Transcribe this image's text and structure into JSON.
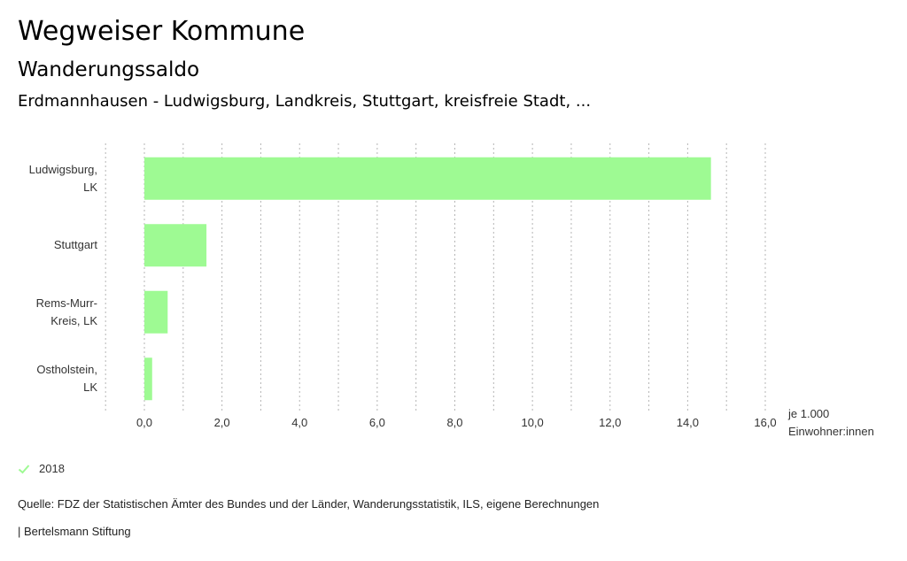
{
  "header": {
    "title": "Wegweiser Kommune",
    "subtitle": "Wanderungssaldo",
    "context": "Erdmannhausen - Ludwigsburg, Landkreis, Stuttgart, kreisfreie Stadt, ..."
  },
  "chart_data": {
    "type": "bar",
    "orientation": "horizontal",
    "categories": [
      [
        "Ludwigsburg,",
        "LK"
      ],
      [
        "Stuttgart"
      ],
      [
        "Rems-Murr-",
        "Kreis, LK"
      ],
      [
        "Ostholstein,",
        "LK"
      ]
    ],
    "series": [
      {
        "name": "2018",
        "values": [
          14.6,
          1.6,
          0.6,
          0.2
        ],
        "color": "#9efa93"
      }
    ],
    "xlim": [
      0,
      16
    ],
    "xticks": [
      "0,0",
      "2,0",
      "4,0",
      "6,0",
      "8,0",
      "10,0",
      "12,0",
      "14,0",
      "16,0"
    ],
    "xlabel": [
      "je 1.000",
      "Einwohner:innen"
    ],
    "grid": "vertical dotted",
    "legend_placement": "bottom-left"
  },
  "legend": {
    "label": "2018",
    "icon": "check-icon",
    "color": "#9efa93"
  },
  "footer": {
    "source": "Quelle: FDZ der Statistischen Ämter des Bundes und der Länder, Wanderungsstatistik, ILS, eigene Berechnungen",
    "credit": "| Bertelsmann Stiftung"
  }
}
